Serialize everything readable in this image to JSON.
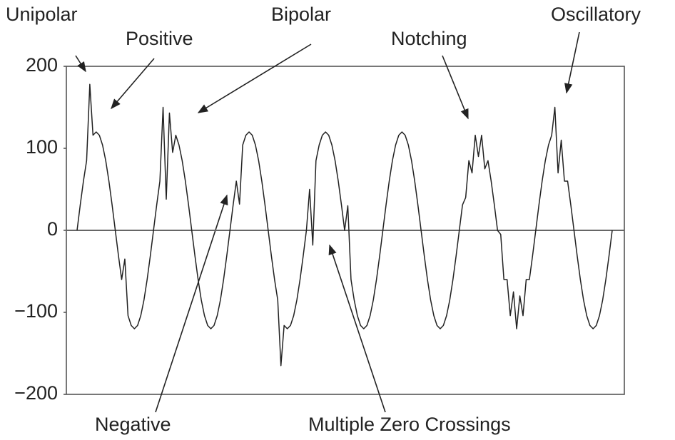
{
  "chart_data": {
    "type": "line",
    "annotations": [
      "Unipolar",
      "Positive",
      "Bipolar",
      "Notching",
      "Oscillatory",
      "Negative",
      "Multiple Zero Crossings"
    ],
    "values": [
      0,
      31,
      60,
      85,
      178,
      116,
      120,
      116,
      104,
      85,
      60,
      31,
      0,
      -31,
      -60,
      -35,
      -104,
      -116,
      -120,
      -116,
      -104,
      -85,
      -60,
      -31,
      0,
      31,
      60,
      150,
      38,
      143,
      95,
      116,
      104,
      85,
      60,
      31,
      0,
      -31,
      -60,
      -85,
      -104,
      -116,
      -120,
      -116,
      -104,
      -85,
      -60,
      -31,
      0,
      31,
      60,
      32,
      104,
      116,
      120,
      116,
      104,
      85,
      60,
      31,
      0,
      -31,
      -60,
      -85,
      -165,
      -116,
      -120,
      -116,
      -104,
      -85,
      -60,
      -31,
      0,
      50,
      -18,
      85,
      104,
      116,
      120,
      116,
      104,
      85,
      60,
      31,
      0,
      30,
      -60,
      -85,
      -104,
      -116,
      -120,
      -116,
      -104,
      -85,
      -60,
      -31,
      0,
      31,
      60,
      85,
      104,
      116,
      120,
      116,
      104,
      85,
      60,
      31,
      0,
      -31,
      -60,
      -85,
      -104,
      -116,
      -120,
      -116,
      -104,
      -85,
      -60,
      -31,
      0,
      31,
      40,
      85,
      70,
      116,
      90,
      116,
      75,
      85,
      60,
      31,
      0,
      -5,
      -60,
      -60,
      -104,
      -75,
      -120,
      -80,
      -104,
      -60,
      -60,
      -31,
      0,
      31,
      60,
      85,
      104,
      116,
      150,
      70,
      110,
      60,
      60,
      31,
      0,
      -31,
      -60,
      -85,
      -104,
      -116,
      -120,
      -116,
      -104,
      -85,
      -60,
      -31,
      0
    ],
    "color": "#222222",
    "ylim": [
      -200,
      200
    ],
    "yticks": [
      {
        "value": 200,
        "label": "200"
      },
      {
        "value": 100,
        "label": "100"
      },
      0,
      {
        "value": -100,
        "label": "−100"
      },
      {
        "value": -200,
        "label": "−200"
      }
    ]
  }
}
